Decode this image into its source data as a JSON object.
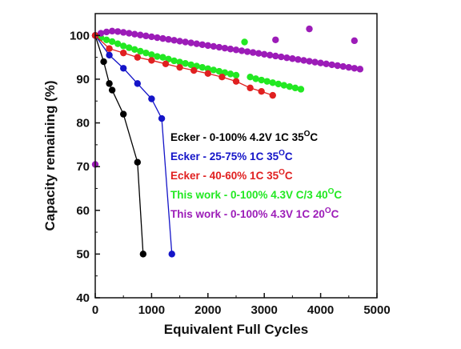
{
  "chart_data": {
    "type": "scatter",
    "xlabel": "Equivalent Full Cycles",
    "ylabel": "Capacity remaining (%)",
    "xlim": [
      0,
      5000
    ],
    "ylim": [
      40,
      105
    ],
    "xticks": [
      0,
      1000,
      2000,
      3000,
      4000,
      5000
    ],
    "xtick_labels": [
      "0",
      "1000",
      "2000",
      "3000",
      "4000",
      "5000"
    ],
    "yticks": [
      40,
      50,
      60,
      70,
      80,
      90,
      100
    ],
    "ytick_labels": [
      "40",
      "50",
      "60",
      "70",
      "80",
      "90",
      "100"
    ],
    "grid": false,
    "legend_position": "center-right",
    "series": [
      {
        "name": "Ecker - 0-100% 4.2V 1C 35",
        "name_sup": "O",
        "name_suffix": "C",
        "color": "#000000",
        "connected": true,
        "x": [
          0,
          150,
          250,
          300,
          500,
          750,
          850
        ],
        "y": [
          100,
          94,
          89,
          87.5,
          82,
          71,
          50
        ]
      },
      {
        "name": "Ecker - 25-75% 1C 35",
        "name_sup": "O",
        "name_suffix": "C",
        "color": "#1414c8",
        "connected": true,
        "x": [
          0,
          250,
          500,
          750,
          1000,
          1180,
          1360
        ],
        "y": [
          100,
          95.5,
          92.5,
          89,
          85.5,
          81,
          50
        ]
      },
      {
        "name": "Ecker - 40-60% 1C 35",
        "name_sup": "O",
        "name_suffix": "C",
        "color": "#e02020",
        "connected": true,
        "x": [
          0,
          250,
          500,
          750,
          1000,
          1250,
          1500,
          1750,
          2000,
          2250,
          2500,
          2750,
          2950,
          3150
        ],
        "y": [
          100,
          97,
          96,
          95,
          94.3,
          93.5,
          92.7,
          92,
          91.3,
          90.5,
          89.5,
          88,
          87.2,
          86.3
        ]
      },
      {
        "name": "This work - 0-100% 4.3V C/3 40",
        "name_sup": "O",
        "name_suffix": "C",
        "color": "#22e822",
        "connected": false,
        "x": [
          100,
          200,
          300,
          400,
          500,
          600,
          700,
          800,
          900,
          1000,
          1100,
          1200,
          1300,
          1400,
          1500,
          1600,
          1700,
          1800,
          1900,
          2000,
          2100,
          2200,
          2300,
          2400,
          2500,
          2650,
          2750,
          2850,
          2950,
          3050,
          3150,
          3250,
          3350,
          3450,
          3550,
          3650
        ],
        "y": [
          99.5,
          99,
          98.6,
          98.1,
          97.6,
          97.2,
          96.8,
          96.4,
          96,
          95.6,
          95.2,
          95,
          94.6,
          94.2,
          93.9,
          93.6,
          93.3,
          93,
          92.7,
          92.4,
          92.1,
          91.8,
          91.5,
          91.2,
          90.9,
          98.5,
          90.5,
          90.1,
          89.8,
          89.5,
          89.2,
          88.9,
          88.6,
          88.3,
          88,
          87.7
        ]
      },
      {
        "name": "This work - 0-100% 4.3V 1C 20",
        "name_sup": "O",
        "name_suffix": "C",
        "color": "#9c1cb8",
        "connected": false,
        "x": [
          0,
          100,
          200,
          300,
          400,
          500,
          600,
          700,
          800,
          900,
          1000,
          1100,
          1200,
          1300,
          1400,
          1500,
          1600,
          1700,
          1800,
          1900,
          2000,
          2100,
          2200,
          2300,
          2400,
          2500,
          2600,
          2700,
          2800,
          2900,
          3000,
          3100,
          3200,
          3300,
          3400,
          3500,
          3600,
          3700,
          3800,
          3900,
          4000,
          4100,
          4200,
          4300,
          4400,
          4500,
          4600,
          4700,
          3200,
          3800,
          4600
        ],
        "y": [
          70.5,
          100.5,
          100.8,
          101,
          100.9,
          100.7,
          100.5,
          100.3,
          100.1,
          99.9,
          99.7,
          99.5,
          99.3,
          99.1,
          98.9,
          98.7,
          98.5,
          98.3,
          98.1,
          97.9,
          97.7,
          97.5,
          97.3,
          97.1,
          96.9,
          96.7,
          96.5,
          96.3,
          96.1,
          95.9,
          95.7,
          95.5,
          95.3,
          95.1,
          94.9,
          94.7,
          94.5,
          94.3,
          94.1,
          93.9,
          93.7,
          93.5,
          93.3,
          93.1,
          92.9,
          92.7,
          92.5,
          92.3,
          99,
          101.5,
          98.8
        ]
      }
    ]
  }
}
